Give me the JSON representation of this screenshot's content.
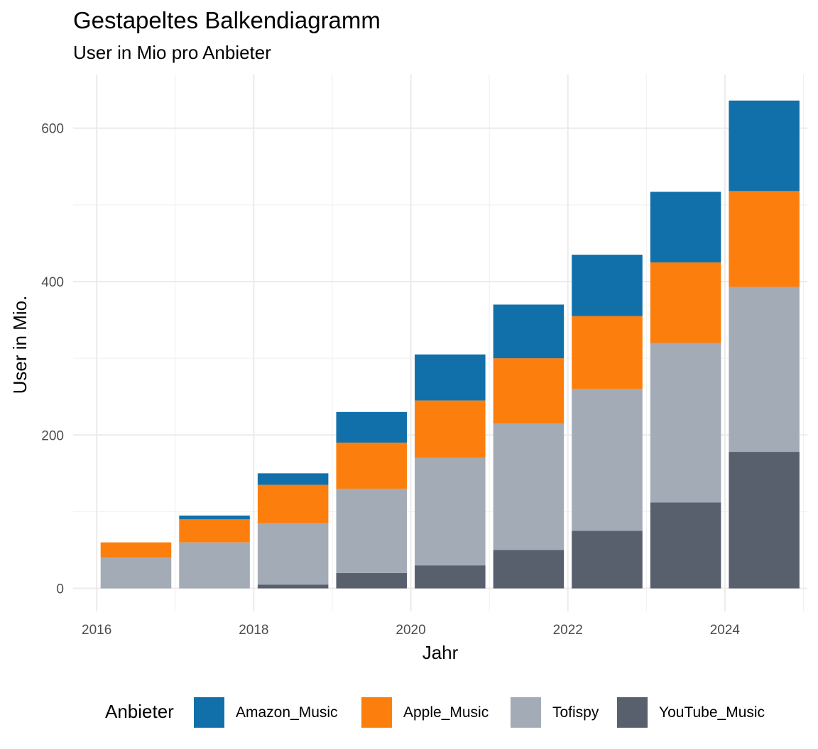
{
  "chart_data": {
    "type": "bar",
    "stacked": true,
    "title": "Gestapeltes Balkendiagramm",
    "subtitle": "User in Mio pro Anbieter",
    "xlabel": "Jahr",
    "ylabel": "User in Mio.",
    "categories": [
      2016,
      2017,
      2018,
      2019,
      2020,
      2021,
      2022,
      2023,
      2024
    ],
    "x_ticks": [
      "2016",
      "2018",
      "2020",
      "2022",
      "2024"
    ],
    "y_ticks": [
      "0",
      "200",
      "400",
      "600"
    ],
    "xlim": [
      2015.7,
      2025.05
    ],
    "ylim": [
      -30,
      670
    ],
    "grid": true,
    "legend_position": "bottom",
    "legend_title": "Anbieter",
    "series": [
      {
        "name": "YouTube_Music",
        "color": "#585f6d",
        "values": [
          0,
          0,
          5,
          20,
          30,
          50,
          75,
          112,
          178
        ]
      },
      {
        "name": "Tofispy",
        "color": "#a3abb6",
        "values": [
          40,
          60,
          80,
          110,
          140,
          165,
          185,
          208,
          215
        ]
      },
      {
        "name": "Apple_Music",
        "color": "#fc7f0e",
        "values": [
          20,
          30,
          50,
          60,
          75,
          85,
          95,
          105,
          125
        ]
      },
      {
        "name": "Amazon_Music",
        "color": "#1170aa",
        "values": [
          0,
          5,
          15,
          40,
          60,
          70,
          80,
          92,
          118
        ]
      }
    ],
    "legend_order": [
      "Amazon_Music",
      "Apple_Music",
      "Tofispy",
      "YouTube_Music"
    ]
  }
}
